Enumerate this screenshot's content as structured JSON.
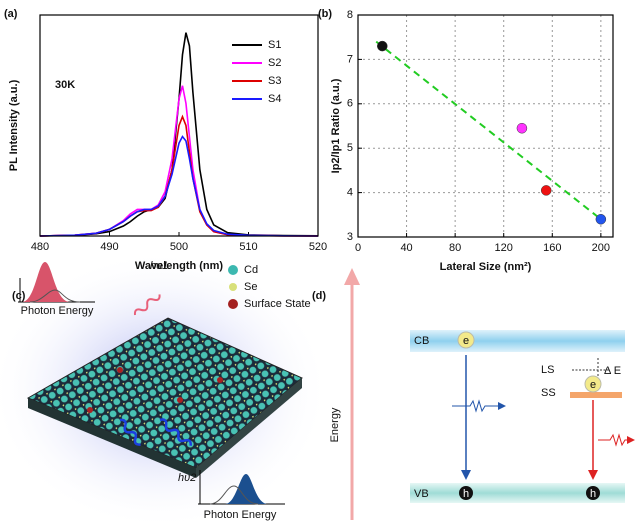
{
  "chart_data": [
    {
      "type": "line",
      "label": "(a)",
      "annotation": "30K",
      "xlabel": "Wavelength (nm)",
      "ylabel": "PL Intensity (a.u.)",
      "x": [
        480,
        485,
        488,
        490,
        492,
        493,
        494,
        495,
        496,
        497,
        498,
        499,
        500,
        500.5,
        501,
        501.5,
        502,
        503,
        504,
        505,
        507,
        510,
        515,
        520
      ],
      "series": [
        {
          "name": "S1",
          "color": "#000000",
          "values": [
            0.0,
            0.003,
            0.01,
            0.02,
            0.045,
            0.065,
            0.09,
            0.11,
            0.12,
            0.13,
            0.17,
            0.3,
            0.62,
            0.82,
            0.92,
            0.86,
            0.65,
            0.3,
            0.12,
            0.05,
            0.015,
            0.005,
            0.002,
            0.001
          ]
        },
        {
          "name": "S2",
          "color": "#ff00ff",
          "values": [
            0.0,
            0.004,
            0.012,
            0.03,
            0.07,
            0.1,
            0.12,
            0.12,
            0.12,
            0.14,
            0.2,
            0.35,
            0.62,
            0.68,
            0.6,
            0.45,
            0.3,
            0.12,
            0.05,
            0.02,
            0.006,
            0.002,
            0.001,
            0.0
          ]
        },
        {
          "name": "S3",
          "color": "#dd0000",
          "values": [
            0.0,
            0.004,
            0.012,
            0.03,
            0.065,
            0.09,
            0.11,
            0.115,
            0.115,
            0.13,
            0.18,
            0.3,
            0.5,
            0.54,
            0.5,
            0.38,
            0.26,
            0.11,
            0.05,
            0.02,
            0.006,
            0.002,
            0.001,
            0.0
          ]
        },
        {
          "name": "S4",
          "color": "#1a1aff",
          "values": [
            0.0,
            0.004,
            0.012,
            0.03,
            0.065,
            0.09,
            0.11,
            0.12,
            0.12,
            0.135,
            0.18,
            0.28,
            0.42,
            0.45,
            0.43,
            0.35,
            0.26,
            0.12,
            0.055,
            0.025,
            0.008,
            0.003,
            0.001,
            0.0
          ]
        }
      ],
      "xlim": [
        480,
        520
      ],
      "xticks": [
        480,
        490,
        500,
        510,
        520
      ],
      "ylim": [
        0,
        1
      ]
    },
    {
      "type": "scatter",
      "label": "(b)",
      "xlabel": "Lateral Size (nm²)",
      "ylabel": "Ip2/Ip1 Ratio (a.u.)",
      "points": {
        "x": [
          20,
          135,
          155,
          200
        ],
        "y": [
          7.3,
          5.45,
          4.05,
          3.4
        ],
        "colors": [
          "#111111",
          "#ff33ff",
          "#ee1111",
          "#2255ee"
        ]
      },
      "trend": {
        "x": [
          15,
          200
        ],
        "y": [
          7.4,
          3.4
        ],
        "color": "#22cc22"
      },
      "xlim": [
        0,
        210
      ],
      "xticks": [
        0,
        40,
        80,
        120,
        160,
        200
      ],
      "ylim": [
        3,
        8
      ],
      "yticks": [
        3,
        4,
        5,
        6,
        7,
        8
      ],
      "grid": true
    }
  ],
  "panel_c": {
    "label": "(c)",
    "legend": [
      "Cd",
      "Se",
      "Surface State"
    ],
    "inset_top": "Photon Energy",
    "inset_bottom": "Photon Energy",
    "hv1": "hυ1",
    "hv2": "hυ2"
  },
  "panel_d": {
    "label": "(d)",
    "axis": "Energy",
    "cb": "CB",
    "vb": "VB",
    "ls": "LS",
    "ss": "SS",
    "delta": "Δ E",
    "electron": "e",
    "hole": "h"
  }
}
